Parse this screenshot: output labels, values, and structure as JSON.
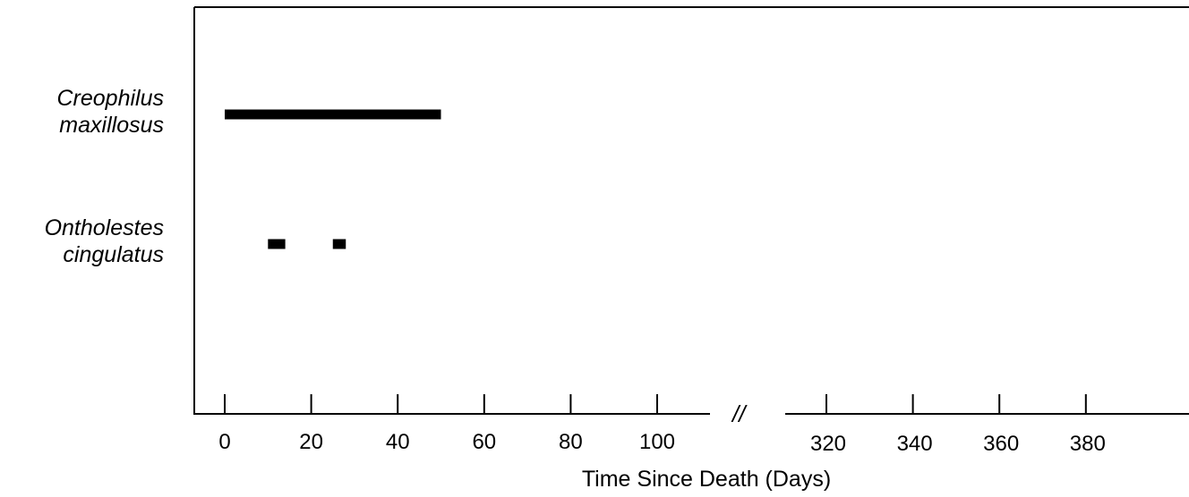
{
  "chart_data": {
    "type": "bar",
    "orientation": "horizontal",
    "title": "",
    "xlabel": "Time Since Death (Days)",
    "ylabel": "",
    "xlim_left_segment": [
      0,
      110
    ],
    "xlim_right_segment": [
      300,
      400
    ],
    "axis_break": true,
    "axis_break_label": "//",
    "x_ticks_left": [
      0,
      20,
      40,
      60,
      80,
      100
    ],
    "x_tick_labels_left": [
      "0",
      "20",
      "40",
      "60",
      "80",
      "100"
    ],
    "x_ticks_right": [
      320,
      340,
      360,
      380
    ],
    "x_tick_labels_right": [
      "320",
      "340",
      "360",
      "380"
    ],
    "grid": false,
    "legend": "none",
    "bar_color": "#000000",
    "series": [
      {
        "label_lines": [
          "Creophilus",
          "maxillosus"
        ],
        "intervals": [
          [
            0,
            50
          ]
        ]
      },
      {
        "label_lines": [
          "Ontholestes",
          "cingulatus"
        ],
        "intervals": [
          [
            10,
            14
          ],
          [
            25,
            28
          ]
        ]
      }
    ]
  }
}
